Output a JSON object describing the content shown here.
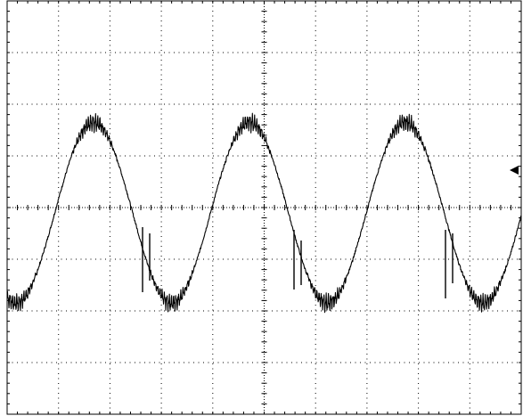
{
  "chart_data": {
    "type": "line",
    "title": "",
    "xlabel": "",
    "ylabel": "",
    "grid": true,
    "grid_divisions": {
      "x": 10,
      "y": 8
    },
    "minor_ticks_per_division": 5,
    "xlim": [
      0,
      10
    ],
    "ylim": [
      -4,
      4
    ],
    "trigger_marker": "arrow-left-icon",
    "colors": {
      "background": "#ffffff",
      "trace": "#000000",
      "grid": "#000000"
    },
    "series": [
      {
        "waveform": "sine-with-switching-ripple",
        "cycles": 3.3,
        "amplitude_div": 1.75,
        "offset_div": -0.1,
        "x": [
          0.0,
          0.25,
          0.5,
          0.75,
          1.0,
          1.25,
          1.5,
          1.75,
          2.0,
          2.25,
          2.5,
          2.75,
          3.0,
          3.25,
          3.5,
          3.75,
          4.0,
          4.25,
          4.5,
          4.75,
          5.0,
          5.25,
          5.5,
          5.75,
          6.0,
          6.25,
          6.5,
          6.75,
          7.0,
          7.25,
          7.5,
          7.75,
          8.0,
          8.25,
          8.5,
          8.75,
          9.0,
          9.25,
          9.5,
          9.75,
          10.0
        ],
        "y": [
          -1.6,
          -1.45,
          -0.95,
          -0.3,
          0.35,
          0.95,
          1.45,
          1.6,
          1.3,
          0.7,
          0.05,
          -0.65,
          -1.25,
          -1.65,
          -1.55,
          -1.05,
          -0.4,
          0.3,
          0.95,
          1.45,
          1.5,
          1.1,
          0.05,
          -0.6,
          -1.25,
          -1.65,
          -1.55,
          -1.05,
          -0.4,
          0.3,
          0.95,
          1.5,
          1.7,
          1.3,
          0.05,
          -0.6,
          -1.25,
          -1.85,
          -1.55,
          -0.95,
          0.55
        ]
      }
    ]
  }
}
